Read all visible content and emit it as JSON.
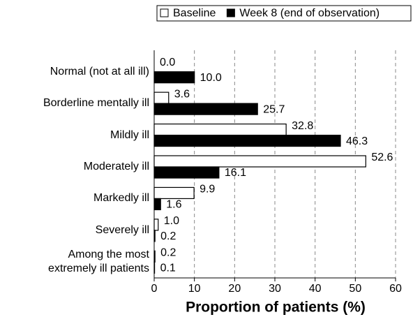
{
  "chart_data": {
    "type": "hbar",
    "categories": [
      "Normal (not at all ill)",
      "Borderline mentally ill",
      "Mildly ill",
      "Moderately ill",
      "Markedly ill",
      "Severely ill",
      "Among the most\nextremely ill patients"
    ],
    "series": [
      {
        "name": "Baseline",
        "color": "#ffffff",
        "values": [
          0.0,
          3.6,
          32.8,
          52.6,
          9.9,
          1.0,
          0.2
        ],
        "value_labels": [
          "0.0",
          "3.6",
          "32.8",
          "52.6",
          "9.9",
          "1.0",
          "0.2"
        ]
      },
      {
        "name": "Week 8 (end of observation)",
        "color": "#000000",
        "values": [
          10.0,
          25.7,
          46.3,
          16.1,
          1.6,
          0.2,
          0.1
        ],
        "value_labels": [
          "10.0",
          "25.7",
          "46.3",
          "16.1",
          "1.6",
          "0.2",
          "0.1"
        ]
      }
    ],
    "xlabel": "Proportion of patients (%)",
    "xlim": [
      0,
      60
    ],
    "xticks": [
      0,
      10,
      20,
      30,
      40,
      50,
      60
    ],
    "grid": true
  }
}
